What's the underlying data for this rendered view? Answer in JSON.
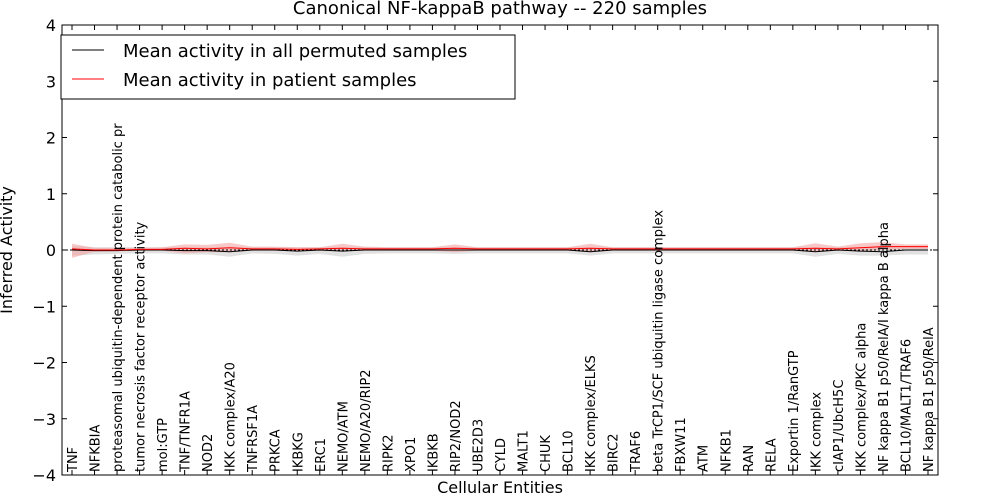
{
  "chart_data": {
    "type": "line",
    "title": "Canonical NF-kappaB pathway -- 220 samples",
    "xlabel": "Cellular Entities",
    "ylabel": "Inferred Activity",
    "ylim": [
      -4,
      4
    ],
    "yticks": [
      -4,
      -3,
      -2,
      -1,
      0,
      1,
      2,
      3,
      4
    ],
    "ytick_labels": [
      "−4",
      "−3",
      "−2",
      "−1",
      "0",
      "1",
      "2",
      "3",
      "4"
    ],
    "grid": false,
    "legend_position": "top-left",
    "categories": [
      "TNF",
      "NFKBIA",
      "proteasomal ubiquitin-dependent protein catabolic pr",
      "tumor necrosis factor receptor activity",
      "mol:GTP",
      "TNF/TNFR1A",
      "NOD2",
      "IKK complex/A20",
      "TNFRSF1A",
      "PRKCA",
      "IKBKG",
      "ERC1",
      "NEMO/ATM",
      "NEMO/A20/RIP2",
      "RIPK2",
      "XPO1",
      "IKBKB",
      "RIP2/NOD2",
      "UBE2D3",
      "CYLD",
      "MALT1",
      "CHUK",
      "BCL10",
      "IKK complex/ELKS",
      "BIRC2",
      "TRAF6",
      "beta TrCP1/SCF ubiquitin ligase complex",
      "FBXW11",
      "ATM",
      "NFKB1",
      "RAN",
      "RELA",
      "Exportin 1/RanGTP",
      "IKK complex",
      "cIAP1/UbcH5C",
      "IKK complex/PKC alpha",
      "NF kappa B1 p50/RelA/I kappa B alpha",
      "BCL10/MALT1/TRAF6",
      "NF kappa B1 p50/RelA"
    ],
    "series": [
      {
        "name": "Mean activity in all permuted samples",
        "color": "#000000",
        "band_color": "#c8c8c8",
        "values": [
          0.0,
          -0.01,
          -0.01,
          0.0,
          0.0,
          -0.01,
          -0.01,
          -0.03,
          0.0,
          0.0,
          -0.02,
          0.0,
          -0.02,
          0.0,
          0.0,
          0.0,
          0.0,
          0.0,
          0.0,
          0.0,
          0.0,
          0.0,
          0.0,
          -0.03,
          0.0,
          0.0,
          0.0,
          0.0,
          0.0,
          0.0,
          0.0,
          0.0,
          0.0,
          -0.03,
          0.0,
          -0.02,
          -0.03,
          0.0,
          0.0
        ],
        "band_lower": [
          -0.1,
          -0.08,
          -0.07,
          -0.06,
          -0.06,
          -0.08,
          -0.08,
          -0.12,
          -0.06,
          -0.07,
          -0.1,
          -0.07,
          -0.12,
          -0.07,
          -0.06,
          -0.06,
          -0.06,
          -0.07,
          -0.06,
          -0.06,
          -0.06,
          -0.06,
          -0.06,
          -0.1,
          -0.06,
          -0.06,
          -0.06,
          -0.06,
          -0.06,
          -0.06,
          -0.06,
          -0.06,
          -0.06,
          -0.12,
          -0.07,
          -0.1,
          -0.1,
          -0.08,
          -0.08
        ],
        "band_upper": [
          0.07,
          0.05,
          0.05,
          0.05,
          0.05,
          0.05,
          0.05,
          0.05,
          0.05,
          0.05,
          0.05,
          0.05,
          0.05,
          0.05,
          0.05,
          0.05,
          0.05,
          0.05,
          0.05,
          0.05,
          0.05,
          0.05,
          0.05,
          0.05,
          0.05,
          0.05,
          0.05,
          0.05,
          0.05,
          0.05,
          0.05,
          0.05,
          0.05,
          0.05,
          0.05,
          0.05,
          0.05,
          0.05,
          0.05
        ]
      },
      {
        "name": "Mean activity in patient samples",
        "color": "#ff0000",
        "band_color": "#f4a3a3",
        "values": [
          0.02,
          0.0,
          0.0,
          0.01,
          0.01,
          0.03,
          0.02,
          0.04,
          0.02,
          0.02,
          0.01,
          0.02,
          0.03,
          0.02,
          0.02,
          0.02,
          0.02,
          0.03,
          0.02,
          0.02,
          0.02,
          0.02,
          0.02,
          0.03,
          0.02,
          0.02,
          0.02,
          0.02,
          0.02,
          0.02,
          0.02,
          0.02,
          0.02,
          0.03,
          0.02,
          0.04,
          0.06,
          0.06,
          0.06
        ],
        "band_lower": [
          -0.14,
          -0.03,
          -0.02,
          -0.01,
          -0.01,
          -0.06,
          -0.04,
          -0.04,
          -0.01,
          -0.01,
          -0.02,
          -0.01,
          -0.02,
          -0.01,
          -0.01,
          -0.01,
          -0.01,
          -0.04,
          -0.01,
          -0.01,
          -0.01,
          -0.01,
          -0.01,
          -0.04,
          -0.01,
          -0.01,
          -0.01,
          -0.01,
          -0.01,
          -0.01,
          -0.01,
          -0.01,
          -0.01,
          -0.04,
          -0.01,
          -0.02,
          0.0,
          0.02,
          0.02
        ],
        "band_upper": [
          0.11,
          0.04,
          0.04,
          0.04,
          0.05,
          0.1,
          0.09,
          0.13,
          0.06,
          0.06,
          0.05,
          0.05,
          0.11,
          0.06,
          0.05,
          0.05,
          0.05,
          0.1,
          0.05,
          0.05,
          0.05,
          0.05,
          0.05,
          0.11,
          0.05,
          0.05,
          0.05,
          0.05,
          0.05,
          0.05,
          0.05,
          0.05,
          0.05,
          0.12,
          0.06,
          0.12,
          0.14,
          0.1,
          0.1
        ]
      }
    ]
  }
}
